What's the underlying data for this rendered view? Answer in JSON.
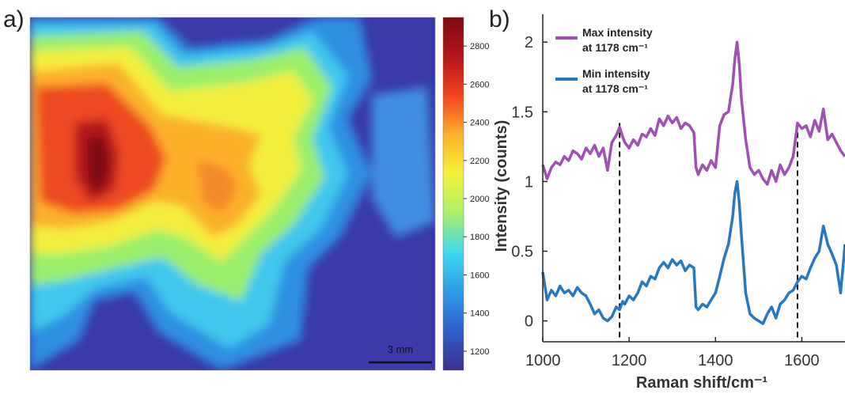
{
  "panels": {
    "a_label": "a)",
    "b_label": "b)"
  },
  "chart_data": [
    {
      "type": "heatmap",
      "scalebar_label": "3 mm",
      "colorbar": {
        "range": [
          1100,
          2950
        ],
        "ticks": [
          1200,
          1400,
          1600,
          1800,
          2000,
          2200,
          2400,
          2600,
          2800
        ],
        "tick_labels": [
          "1200",
          "1400",
          "1600",
          "1800",
          "2000",
          "2200",
          "2400",
          "2600",
          "2800"
        ],
        "colormap": [
          "#3b2f8f",
          "#2f5fc8",
          "#2f9ce6",
          "#3fd8f0",
          "#a8f06a",
          "#f4f23a",
          "#fbb22c",
          "#f2451f",
          "#b3151b",
          "#7d0b12"
        ]
      }
    },
    {
      "type": "line",
      "xlabel": "Raman shift/cm⁻¹",
      "ylabel": "Intensity (counts)",
      "xlim": [
        1000,
        1700
      ],
      "ylim": [
        -0.15,
        2.2
      ],
      "x_ticks": [
        1000,
        1200,
        1400,
        1600
      ],
      "x_tick_labels": [
        "1000",
        "1200",
        "1400",
        "1600"
      ],
      "y_ticks": [
        0,
        0.5,
        1,
        1.5,
        2
      ],
      "y_tick_labels": [
        "0",
        "0.5",
        "1",
        "1.5",
        "2"
      ],
      "reference_lines_x": [
        1178,
        1590
      ],
      "series": [
        {
          "name_line1": "Max intensity",
          "name_line2": "at 1178 cm⁻¹",
          "color": "#a050b0",
          "x": [
            1000,
            1010,
            1020,
            1030,
            1040,
            1050,
            1060,
            1070,
            1080,
            1090,
            1100,
            1110,
            1120,
            1130,
            1140,
            1150,
            1160,
            1170,
            1178,
            1185,
            1190,
            1200,
            1210,
            1220,
            1230,
            1240,
            1250,
            1260,
            1270,
            1280,
            1290,
            1300,
            1310,
            1320,
            1330,
            1340,
            1350,
            1355,
            1360,
            1370,
            1380,
            1390,
            1400,
            1410,
            1420,
            1430,
            1440,
            1445,
            1450,
            1455,
            1460,
            1470,
            1480,
            1490,
            1500,
            1510,
            1520,
            1530,
            1540,
            1550,
            1560,
            1570,
            1580,
            1590,
            1600,
            1610,
            1620,
            1630,
            1640,
            1650,
            1660,
            1670,
            1680,
            1690,
            1700
          ],
          "y": [
            1.12,
            1.02,
            1.1,
            1.14,
            1.12,
            1.18,
            1.15,
            1.22,
            1.2,
            1.16,
            1.24,
            1.2,
            1.26,
            1.18,
            1.24,
            1.08,
            1.28,
            1.33,
            1.39,
            1.32,
            1.28,
            1.24,
            1.3,
            1.26,
            1.34,
            1.32,
            1.38,
            1.33,
            1.45,
            1.4,
            1.47,
            1.42,
            1.46,
            1.38,
            1.42,
            1.4,
            1.35,
            1.1,
            1.05,
            1.12,
            1.08,
            1.15,
            1.1,
            1.4,
            1.48,
            1.5,
            1.7,
            1.88,
            2.0,
            1.85,
            1.6,
            1.3,
            1.1,
            1.05,
            1.08,
            1.02,
            0.98,
            1.08,
            1.0,
            1.12,
            1.05,
            1.1,
            1.18,
            1.42,
            1.38,
            1.4,
            1.32,
            1.44,
            1.36,
            1.52,
            1.3,
            1.34,
            1.28,
            1.22,
            1.18
          ]
        },
        {
          "name_line1": "Min intensity",
          "name_line2": "at 1178 cm⁻¹",
          "color": "#2878c0",
          "x": [
            1000,
            1010,
            1020,
            1030,
            1040,
            1050,
            1060,
            1070,
            1080,
            1090,
            1100,
            1110,
            1120,
            1130,
            1140,
            1150,
            1160,
            1170,
            1178,
            1185,
            1190,
            1200,
            1210,
            1220,
            1230,
            1240,
            1250,
            1260,
            1270,
            1280,
            1290,
            1300,
            1310,
            1320,
            1330,
            1340,
            1350,
            1355,
            1360,
            1370,
            1380,
            1390,
            1400,
            1410,
            1420,
            1430,
            1440,
            1445,
            1450,
            1455,
            1460,
            1470,
            1480,
            1490,
            1500,
            1510,
            1520,
            1530,
            1540,
            1550,
            1560,
            1570,
            1580,
            1590,
            1600,
            1610,
            1620,
            1630,
            1640,
            1650,
            1660,
            1670,
            1680,
            1690,
            1700
          ],
          "y": [
            0.35,
            0.15,
            0.22,
            0.18,
            0.25,
            0.2,
            0.22,
            0.18,
            0.24,
            0.2,
            0.18,
            0.12,
            0.05,
            0.08,
            0.02,
            0.0,
            0.03,
            0.1,
            0.08,
            0.14,
            0.12,
            0.18,
            0.15,
            0.2,
            0.28,
            0.25,
            0.32,
            0.3,
            0.38,
            0.42,
            0.38,
            0.44,
            0.4,
            0.43,
            0.36,
            0.4,
            0.38,
            0.1,
            0.08,
            0.12,
            0.1,
            0.15,
            0.2,
            0.32,
            0.45,
            0.55,
            0.75,
            0.92,
            1.0,
            0.85,
            0.62,
            0.2,
            0.05,
            0.02,
            0.0,
            -0.02,
            0.05,
            0.1,
            0.02,
            0.12,
            0.15,
            0.2,
            0.22,
            0.28,
            0.32,
            0.3,
            0.38,
            0.45,
            0.5,
            0.68,
            0.55,
            0.48,
            0.4,
            0.2,
            0.55
          ]
        }
      ]
    }
  ]
}
